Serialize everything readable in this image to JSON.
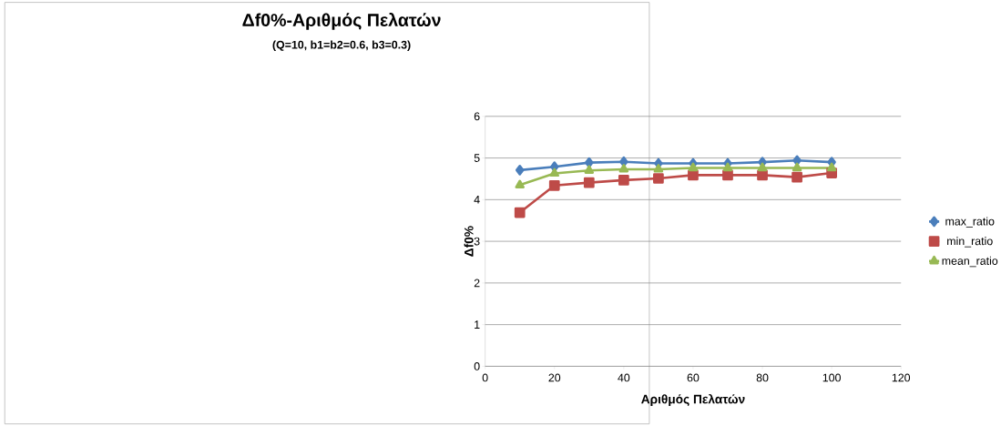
{
  "chart_data": {
    "type": "line",
    "title": "Δf0%-Αριθμός Πελατών",
    "subtitle": "(Q=10, b1=b2=0.6, b3=0.3)",
    "xlabel": "Αριθμός Πελατών",
    "ylabel": "Δf0%",
    "x": [
      10,
      20,
      30,
      40,
      50,
      60,
      70,
      80,
      90,
      100
    ],
    "series": [
      {
        "name": "max_ratio",
        "color": "#4a7ebb",
        "marker": "diamond",
        "values": [
          4.71,
          4.79,
          4.89,
          4.91,
          4.87,
          4.87,
          4.87,
          4.9,
          4.94,
          4.9
        ]
      },
      {
        "name": "min_ratio",
        "color": "#be4b48",
        "marker": "square",
        "values": [
          3.69,
          4.34,
          4.41,
          4.47,
          4.51,
          4.59,
          4.59,
          4.59,
          4.54,
          4.64
        ]
      },
      {
        "name": "mean_ratio",
        "color": "#98b954",
        "marker": "triangle",
        "values": [
          4.35,
          4.63,
          4.7,
          4.73,
          4.73,
          4.76,
          4.76,
          4.76,
          4.76,
          4.76
        ]
      }
    ],
    "xlim": [
      0,
      120
    ],
    "xticks": [
      0,
      20,
      40,
      60,
      80,
      100,
      120
    ],
    "ylim": [
      0,
      6
    ],
    "yticks": [
      0,
      1,
      2,
      3,
      4,
      5,
      6
    ],
    "grid": "y",
    "legend": "right",
    "line_style": "solid"
  }
}
